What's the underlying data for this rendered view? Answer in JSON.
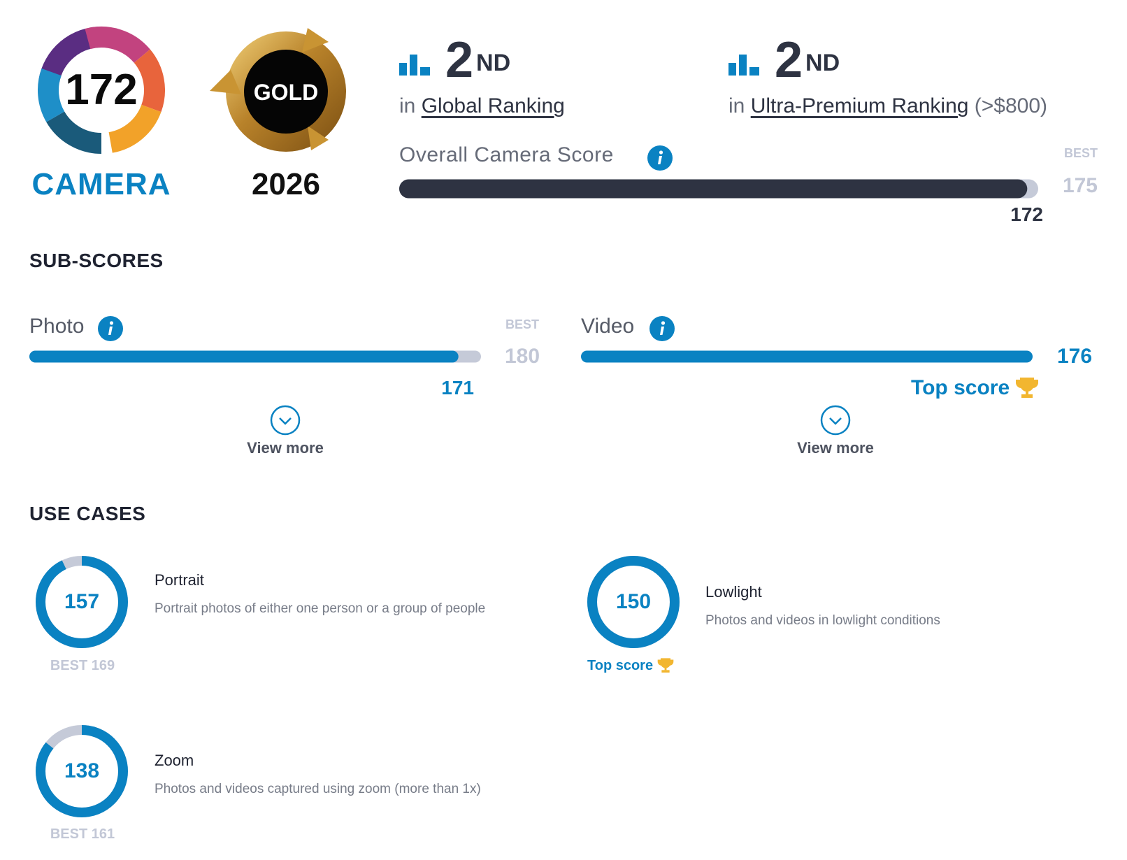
{
  "badges": {
    "camera": {
      "score": 172,
      "label": "CAMERA"
    },
    "award": {
      "label": "GOLD",
      "year": 2026
    }
  },
  "rankings": [
    {
      "rank": 2,
      "suffix": "ND",
      "prefix": "in",
      "name": "Global Ranking"
    },
    {
      "rank": 2,
      "suffix": "ND",
      "prefix": "in",
      "name": "Ultra-Premium Ranking",
      "note": "(>$800)"
    }
  ],
  "overall": {
    "label": "Overall Camera Score",
    "score": 172,
    "best_label": "BEST",
    "best": 175
  },
  "sub_scores": {
    "title": "SUB-SCORES",
    "items": [
      {
        "label": "Photo",
        "score": 171,
        "best_label": "BEST",
        "best": 180,
        "more": "View more"
      },
      {
        "label": "Video",
        "score": 176,
        "top": "Top score",
        "more": "View more"
      }
    ]
  },
  "use_cases": {
    "title": "USE CASES",
    "items": [
      {
        "label": "Portrait",
        "description": "Portrait photos of either one person or a group of people",
        "score": 157,
        "best_label": "BEST",
        "best": 169
      },
      {
        "label": "Lowlight",
        "description": "Photos and videos in lowlight conditions",
        "score": 150,
        "top": "Top score"
      },
      {
        "label": "Zoom",
        "description": "Photos and videos captured using zoom (more than 1x)",
        "score": 138,
        "best_label": "BEST",
        "best": 161
      }
    ]
  }
}
